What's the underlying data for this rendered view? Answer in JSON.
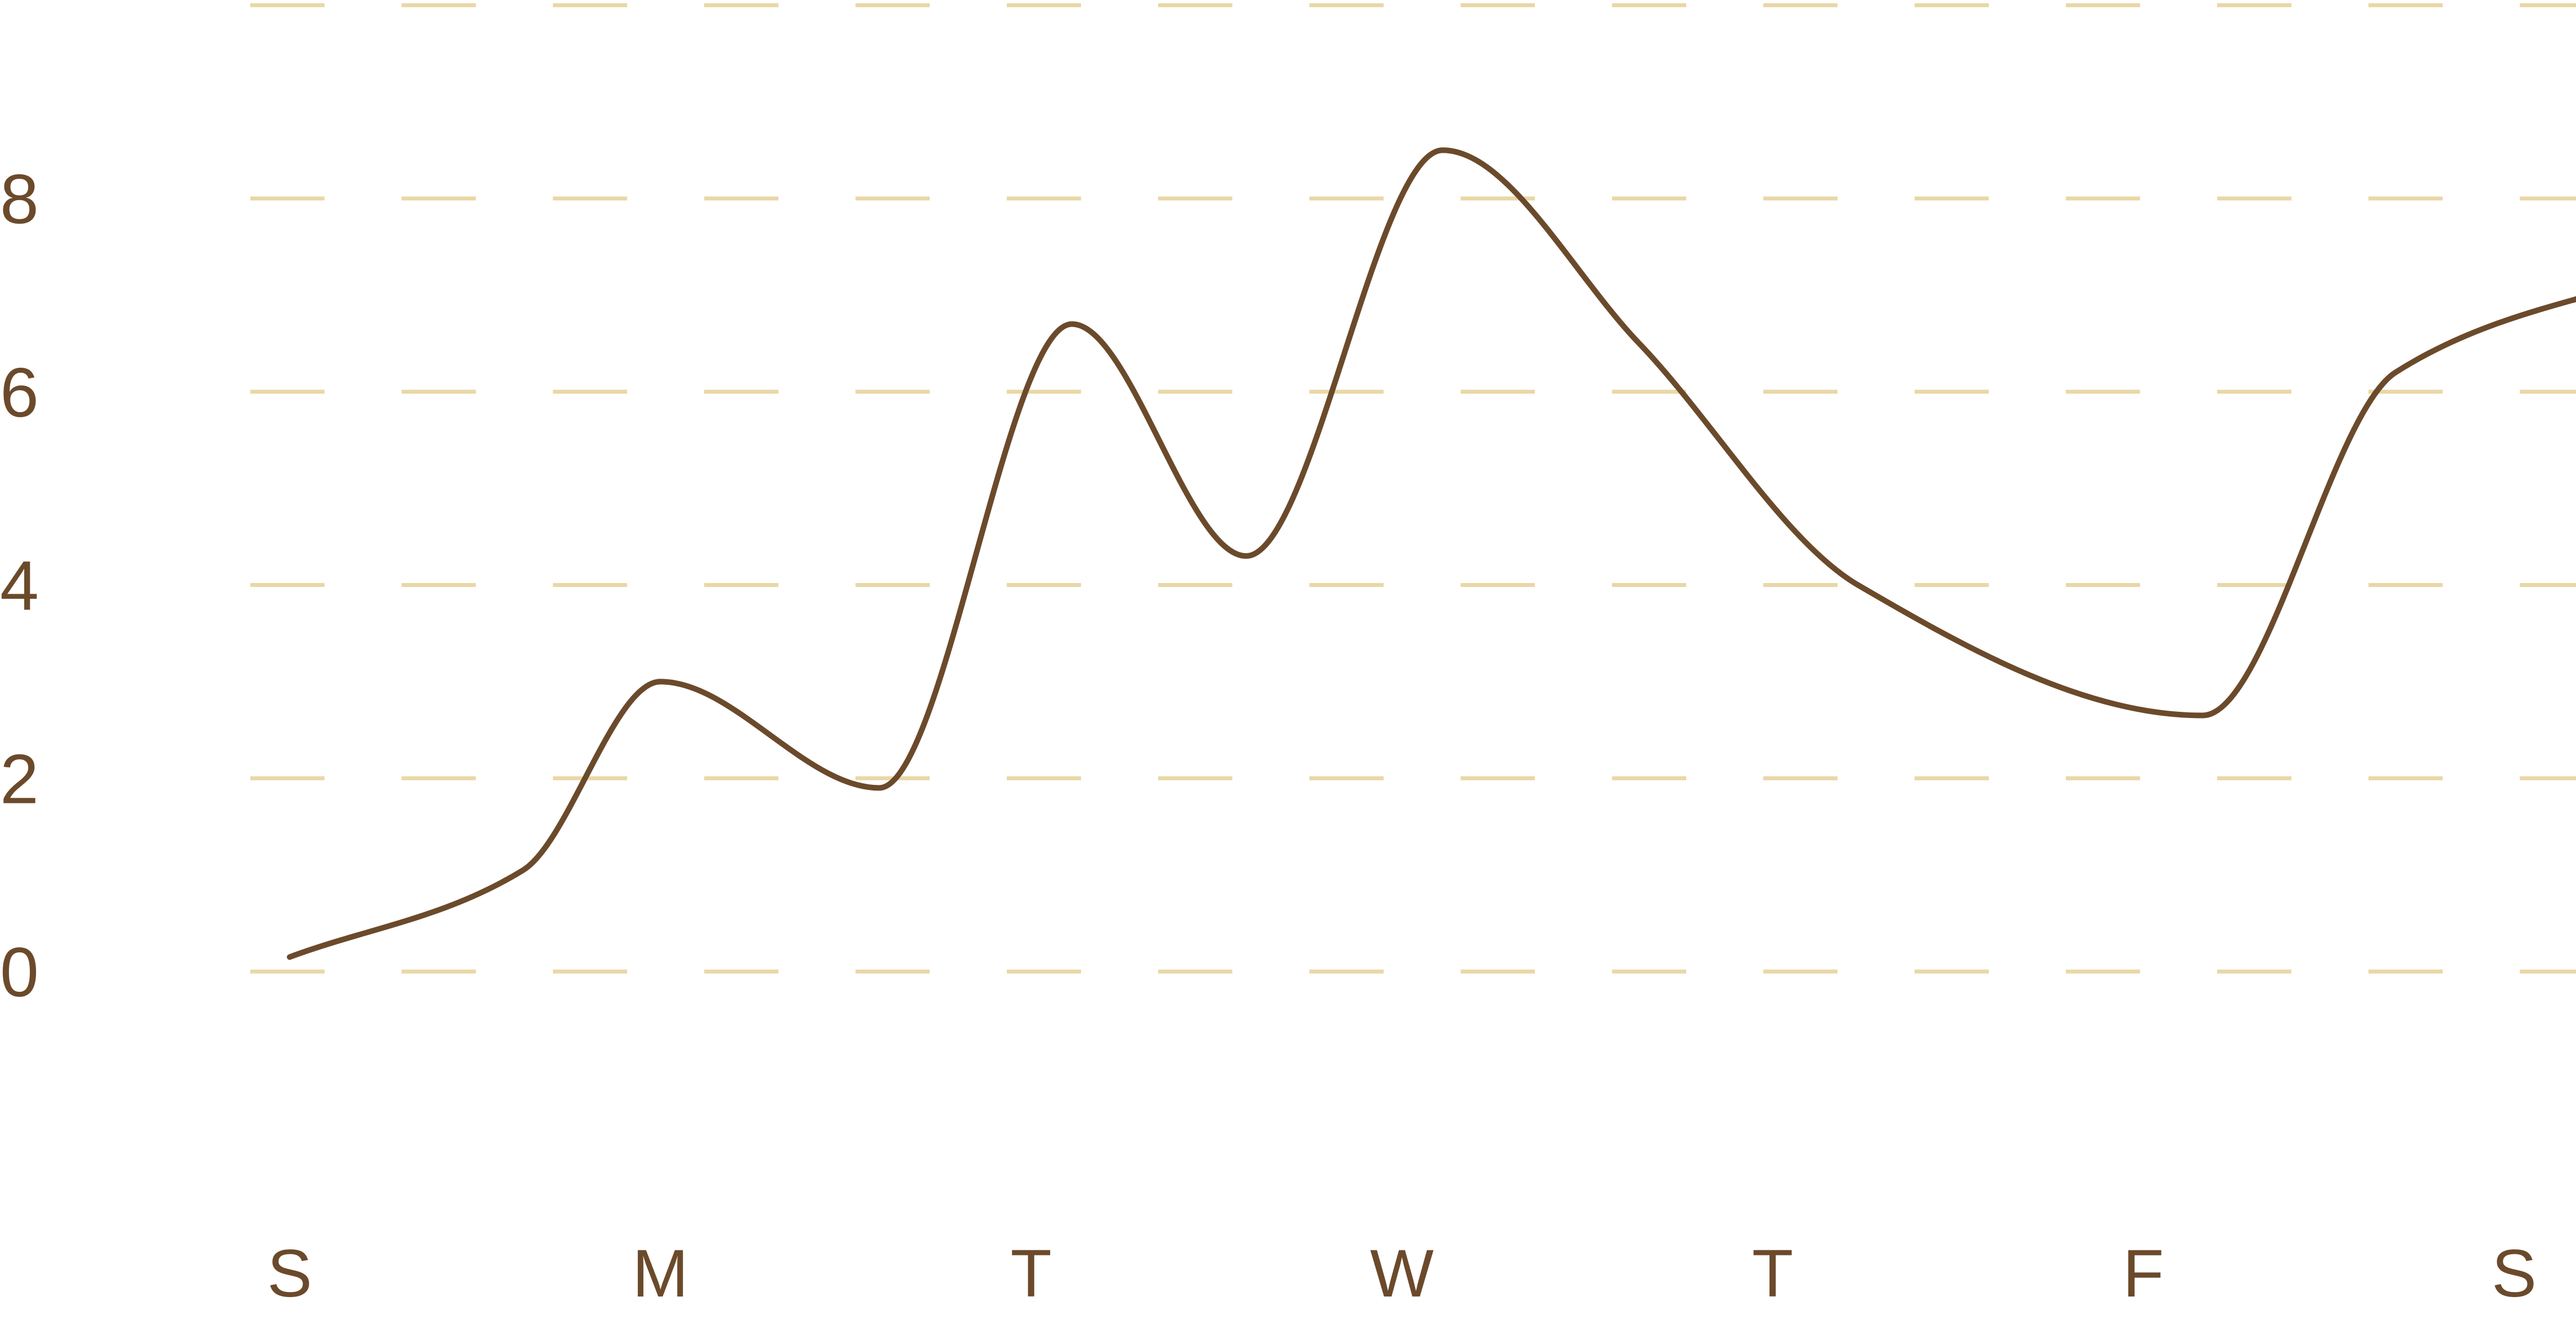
{
  "chart_data": {
    "type": "line",
    "title": "",
    "xlabel": "",
    "ylabel": "",
    "categories": [
      "S",
      "M",
      "T",
      "W",
      "T",
      "F",
      "S"
    ],
    "x": [
      0,
      0.63,
      1.0,
      1.59,
      2.11,
      2.58,
      3.11,
      3.64,
      4.23,
      5.16,
      5.68,
      6.46
    ],
    "y_ticks": [
      "0",
      "2",
      "4",
      "6",
      "8"
    ],
    "ylim": [
      0,
      10
    ],
    "grid": true,
    "legend": "none",
    "series": [
      {
        "values": [
          0.15,
          1.05,
          3.0,
          1.9,
          6.7,
          4.3,
          8.5,
          6.5,
          4.0,
          2.65,
          6.2,
          7.3
        ]
      }
    ],
    "colors": {
      "line": "#6b4a2b",
      "grid": "#ead7a6",
      "text": "#6b4a2b"
    }
  }
}
